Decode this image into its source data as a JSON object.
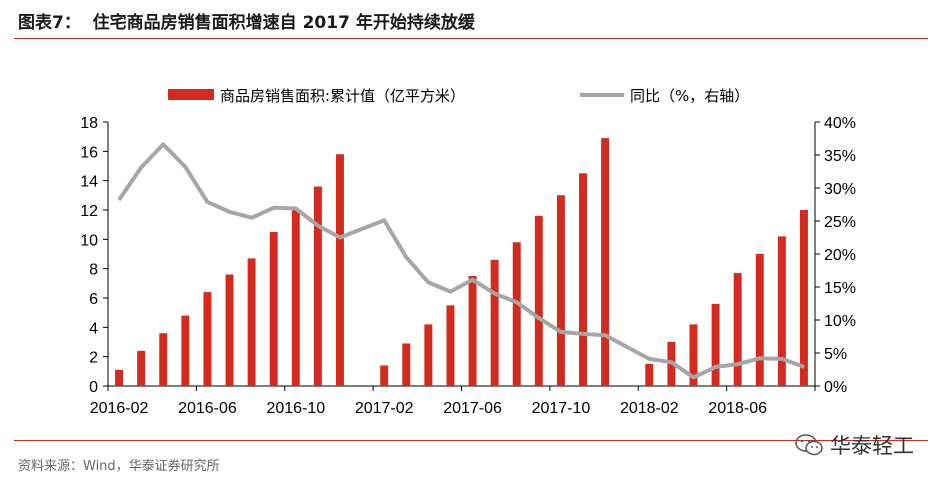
{
  "figure": {
    "title": "图表7：  住宅商品房销售面积增速自 2017 年开始持续放缓",
    "source": "资料来源：Wind，华泰证券研究所",
    "watermark": "华泰轻工",
    "watermark_icon": "wechat-icon"
  },
  "colors": {
    "bar": "#d52b1e",
    "line": "#a6a6a6",
    "accent": "#d12a1f"
  },
  "chart_data": {
    "type": "bar+line",
    "categories": [
      "2016-02",
      "2016-03",
      "2016-04",
      "2016-05",
      "2016-06",
      "2016-07",
      "2016-08",
      "2016-09",
      "2016-10",
      "2016-11",
      "2016-12",
      "2017-01",
      "2017-02",
      "2017-03",
      "2017-04",
      "2017-05",
      "2017-06",
      "2017-07",
      "2017-08",
      "2017-09",
      "2017-10",
      "2017-11",
      "2017-12",
      "2018-01",
      "2018-02",
      "2018-03",
      "2018-04",
      "2018-05",
      "2018-06",
      "2018-07",
      "2018-08",
      "2018-09"
    ],
    "xtick_labels": [
      "2016-02",
      "2016-06",
      "2016-10",
      "2017-02",
      "2017-06",
      "2017-10",
      "2018-02",
      "2018-06"
    ],
    "series": [
      {
        "name": "商品房销售面积:累计值（亿平方米）",
        "type": "bar",
        "axis": "left",
        "values": [
          1.1,
          2.4,
          3.6,
          4.8,
          6.4,
          7.6,
          8.7,
          10.5,
          12.0,
          13.6,
          15.8,
          null,
          1.4,
          2.9,
          4.2,
          5.5,
          7.5,
          8.6,
          9.8,
          11.6,
          13.0,
          14.5,
          16.9,
          null,
          1.5,
          3.0,
          4.2,
          5.6,
          7.7,
          9.0,
          10.2,
          12.0
        ]
      },
      {
        "name": "同比（%，右轴）",
        "type": "line",
        "axis": "right",
        "values": [
          28.2,
          33.1,
          36.6,
          33.2,
          27.9,
          26.4,
          25.5,
          27.0,
          26.9,
          24.3,
          22.5,
          null,
          25.1,
          19.5,
          15.7,
          14.3,
          16.1,
          14.0,
          12.7,
          10.3,
          8.2,
          7.9,
          7.7,
          null,
          4.1,
          3.6,
          1.3,
          2.9,
          3.3,
          4.2,
          4.1,
          2.9
        ]
      }
    ],
    "y_left": {
      "min": 0,
      "max": 18,
      "ticks": [
        "0",
        "2",
        "4",
        "6",
        "8",
        "10",
        "12",
        "14",
        "16",
        "18"
      ]
    },
    "y_right": {
      "min": 0,
      "max": 40,
      "ticks": [
        "0%",
        "5%",
        "10%",
        "15%",
        "20%",
        "25%",
        "30%",
        "35%",
        "40%"
      ]
    },
    "legend_position": "top"
  }
}
